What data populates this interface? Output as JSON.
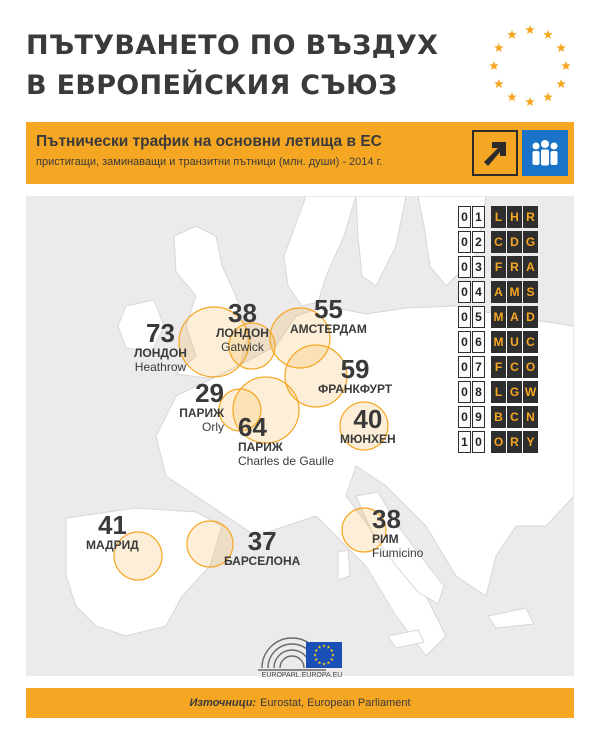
{
  "title": {
    "line1": "ПЪТУВАНЕТО ПО ВЪЗДУХ",
    "line2": "В ЕВРОПЕЙСКИЯ СЪЮЗ"
  },
  "subtitle": {
    "main": "Пътнически трафик на основни летища в ЕС",
    "small": "пристигащи, заминаващи и транзитни пътници (млн. души) - 2014 г."
  },
  "colors": {
    "accent": "#f5a623",
    "text": "#3a3a3a",
    "map_bg": "#eceaea",
    "land": "#ffffff",
    "eu_blue": "#1a73c8"
  },
  "icons": [
    "arrow-up-right-icon",
    "people-icon",
    "eu-stars-icon"
  ],
  "airports": [
    {
      "value": "73",
      "city": "ЛОНДОН",
      "airport": "Heathrow"
    },
    {
      "value": "38",
      "city": "ЛОНДОН",
      "airport": "Gatwick"
    },
    {
      "value": "55",
      "city": "АМСТЕРДАМ",
      "airport": ""
    },
    {
      "value": "59",
      "city": "ФРАНКФУРТ",
      "airport": ""
    },
    {
      "value": "29",
      "city": "ПАРИЖ",
      "airport": "Orly"
    },
    {
      "value": "64",
      "city": "ПАРИЖ",
      "airport": "Charles de Gaulle"
    },
    {
      "value": "40",
      "city": "МЮНХЕН",
      "airport": ""
    },
    {
      "value": "41",
      "city": "МАДРИД",
      "airport": ""
    },
    {
      "value": "37",
      "city": "БАРСЕЛОНА",
      "airport": ""
    },
    {
      "value": "38",
      "city": "РИМ",
      "airport": "Fiumicino"
    }
  ],
  "board": [
    {
      "rank": [
        "0",
        "1"
      ],
      "code": [
        "L",
        "H",
        "R"
      ]
    },
    {
      "rank": [
        "0",
        "2"
      ],
      "code": [
        "C",
        "D",
        "G"
      ]
    },
    {
      "rank": [
        "0",
        "3"
      ],
      "code": [
        "F",
        "R",
        "A"
      ]
    },
    {
      "rank": [
        "0",
        "4"
      ],
      "code": [
        "A",
        "M",
        "S"
      ]
    },
    {
      "rank": [
        "0",
        "5"
      ],
      "code": [
        "M",
        "A",
        "D"
      ]
    },
    {
      "rank": [
        "0",
        "6"
      ],
      "code": [
        "M",
        "U",
        "C"
      ]
    },
    {
      "rank": [
        "0",
        "7"
      ],
      "code": [
        "F",
        "C",
        "O"
      ]
    },
    {
      "rank": [
        "0",
        "8"
      ],
      "code": [
        "L",
        "G",
        "W"
      ]
    },
    {
      "rank": [
        "0",
        "9"
      ],
      "code": [
        "B",
        "C",
        "N"
      ]
    },
    {
      "rank": [
        "1",
        "0"
      ],
      "code": [
        "O",
        "R",
        "Y"
      ]
    }
  ],
  "footer": {
    "url": "EUROPARL.EUROPA.EU",
    "source_label": "Източници:",
    "source_text": "Eurostat, European Parliament"
  }
}
